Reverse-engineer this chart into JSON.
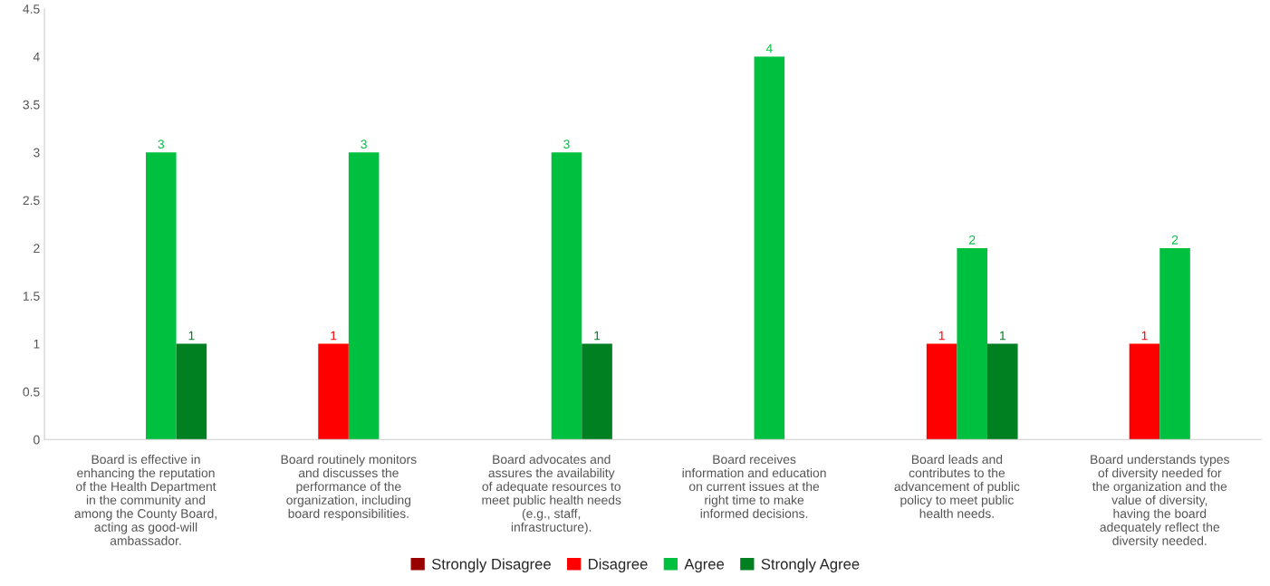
{
  "chart_data": {
    "type": "bar",
    "categories": [
      "Board is effective in\nenhancing the reputation\nof the Health Department\nin the community and\namong the County Board,\nacting as good-will\nambassador.",
      "Board routinely monitors\nand discusses the\nperformance of the\norganization, including\nboard responsibilities.",
      "Board advocates and\nassures the availability\nof adequate resources to\nmeet public health needs\n(e.g., staff,\ninfrastructure).",
      "Board receives\ninformation and education\non current issues at the\nright time to make\ninformed decisions.",
      "Board leads and\ncontributes to the\nadvancement of public\npolicy to meet public\nhealth needs.",
      "Board understands types\nof diversity needed for\nthe organization and the\nvalue of diversity,\nhaving the board\nadequately reflect the\ndiversity needed."
    ],
    "series": [
      {
        "name": "Strongly Disagree",
        "color": "#990000",
        "values": [
          null,
          null,
          null,
          null,
          null,
          null
        ]
      },
      {
        "name": "Disagree",
        "color": "#ff0000",
        "values": [
          null,
          1,
          null,
          null,
          1,
          1
        ]
      },
      {
        "name": "Agree",
        "color": "#00c040",
        "values": [
          3,
          3,
          3,
          4,
          2,
          2
        ]
      },
      {
        "name": "Strongly Agree",
        "color": "#008020",
        "values": [
          1,
          null,
          1,
          null,
          1,
          null
        ]
      }
    ],
    "ylim": [
      0,
      4.5
    ],
    "yticks": [
      0,
      0.5,
      1,
      1.5,
      2,
      2.5,
      3,
      3.5,
      4,
      4.5
    ],
    "data_labels": true,
    "grid": false,
    "legend": "bottom"
  }
}
